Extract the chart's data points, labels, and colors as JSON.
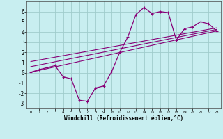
{
  "xlabel": "Windchill (Refroidissement éolien,°C)",
  "background_color": "#c8eef0",
  "grid_color": "#a0cccc",
  "line_color": "#880077",
  "xlim": [
    -0.5,
    23.5
  ],
  "ylim": [
    -3.5,
    7.0
  ],
  "xticks": [
    0,
    1,
    2,
    3,
    4,
    5,
    6,
    7,
    8,
    9,
    10,
    11,
    12,
    13,
    14,
    15,
    16,
    17,
    18,
    19,
    20,
    21,
    22,
    23
  ],
  "yticks": [
    -3,
    -2,
    -1,
    0,
    1,
    2,
    3,
    4,
    5,
    6
  ],
  "curve1_x": [
    0,
    1,
    2,
    3,
    4,
    5,
    6,
    7,
    8,
    9,
    10,
    11,
    12,
    13,
    14,
    15,
    16,
    17,
    18,
    19,
    20,
    21,
    22,
    23
  ],
  "curve1_y": [
    0.05,
    0.3,
    0.5,
    0.7,
    -0.4,
    -0.6,
    -2.7,
    -2.8,
    -1.5,
    -1.3,
    0.1,
    2.0,
    3.5,
    5.7,
    6.4,
    5.8,
    6.0,
    5.9,
    3.2,
    4.3,
    4.5,
    5.0,
    4.8,
    4.1
  ],
  "line1_x": [
    0,
    23
  ],
  "line1_y": [
    0.05,
    4.1
  ],
  "line2_x": [
    0,
    23
  ],
  "line2_y": [
    0.6,
    4.25
  ],
  "line3_x": [
    0,
    23
  ],
  "line3_y": [
    1.1,
    4.4
  ]
}
